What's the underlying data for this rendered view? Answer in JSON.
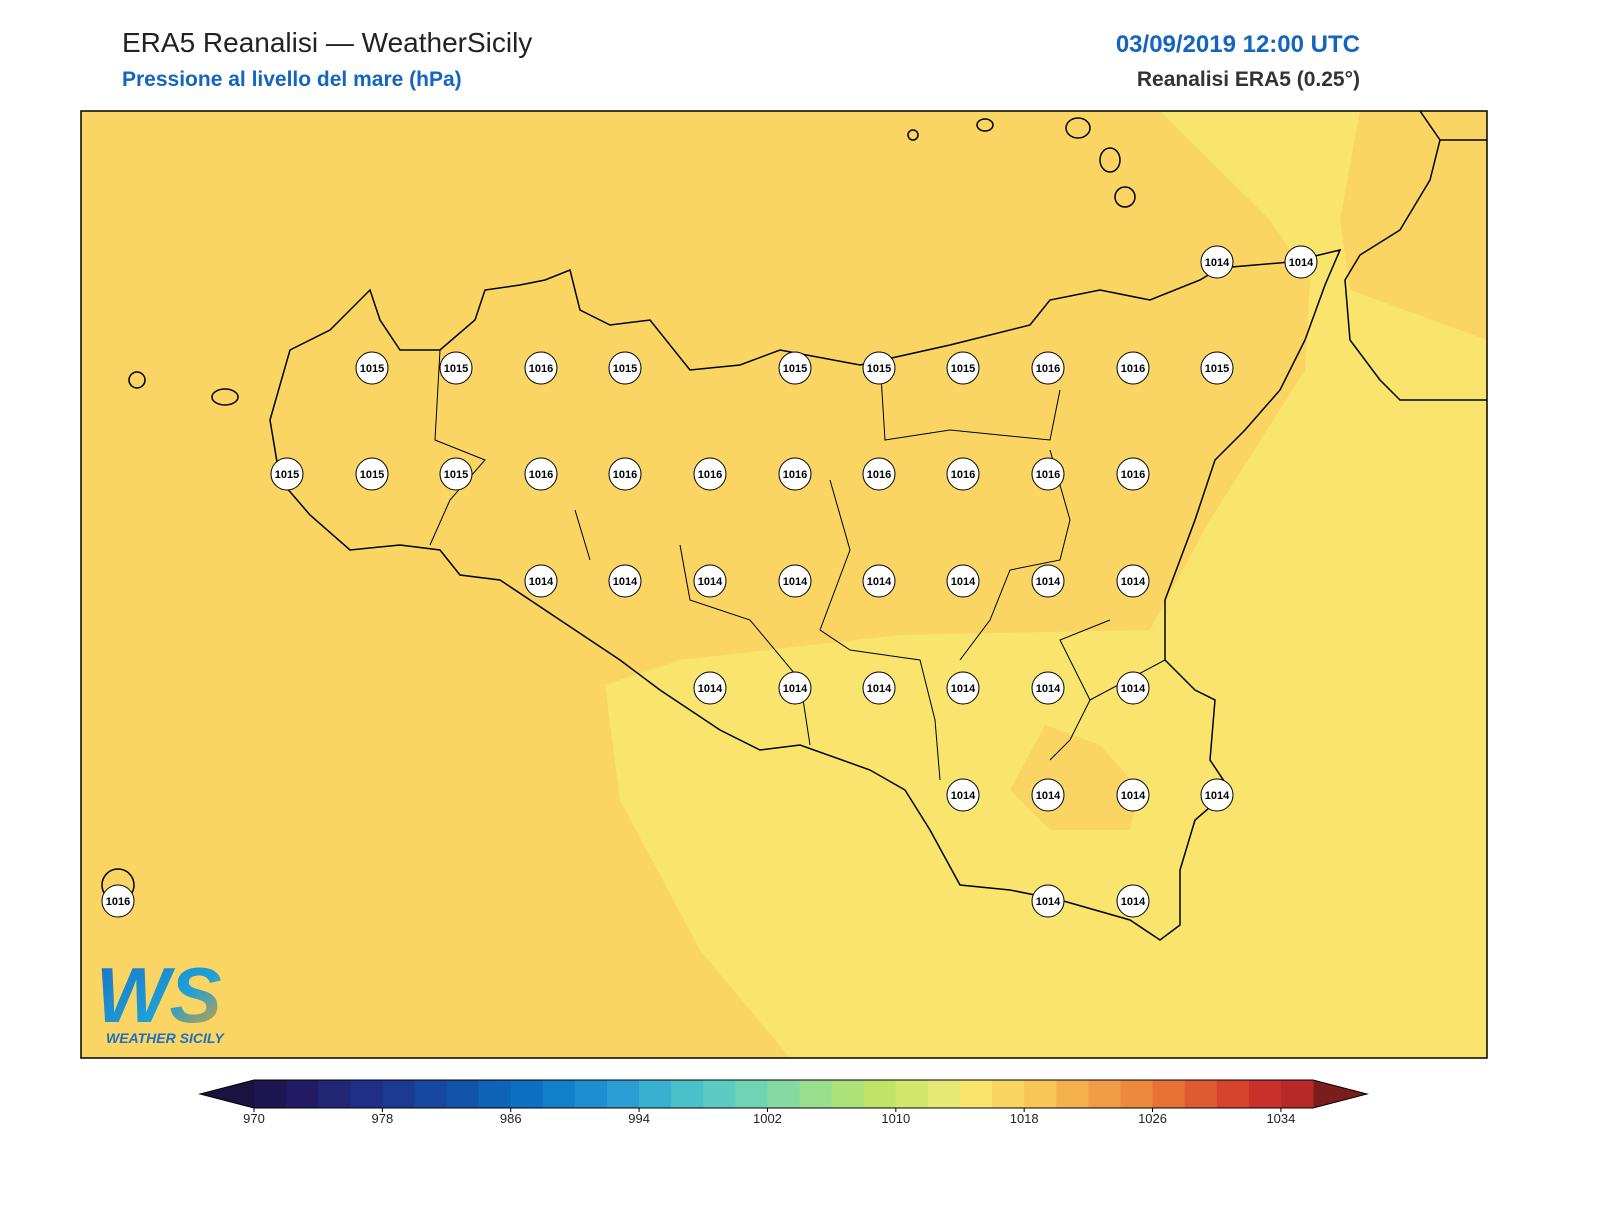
{
  "header": {
    "title": "ERA5 Reanalisi — WeatherSicily",
    "subtitle": "Pressione al livello del mare (hPa)",
    "datetime": "03/09/2019 12:00 UTC",
    "source": "Reanalisi ERA5 (0.25°)"
  },
  "stations": [
    1014,
    1014,
    1015,
    1015,
    1016,
    1015,
    1015,
    1015,
    1015,
    1016,
    1016,
    1015,
    1015,
    1015,
    1015,
    1016,
    1016,
    1016,
    1016,
    1016,
    1016,
    1016,
    1016,
    1014,
    1014,
    1014,
    1014,
    1014,
    1014,
    1014,
    1014,
    1014,
    1014,
    1014,
    1014,
    1014,
    1014,
    1014,
    1014,
    1014,
    1014,
    1016,
    1014,
    1014
  ],
  "colorbar": {
    "lim": [
      970,
      1036
    ],
    "ticks": [
      970,
      978,
      986,
      994,
      1002,
      1010,
      1018,
      1026,
      1034
    ],
    "colors": [
      "#1e1650",
      "#221a63",
      "#222775",
      "#1f2f85",
      "#1c3a92",
      "#17479f",
      "#1354ab",
      "#0e62b7",
      "#0b70c1",
      "#127fcb",
      "#1e8ed0",
      "#2c9dd2",
      "#3ab0d0",
      "#4ac0cb",
      "#5ccbc2",
      "#70d4b4",
      "#85daa3",
      "#98de8c",
      "#ace277",
      "#c0e566",
      "#d3e86b",
      "#e6ea75",
      "#f9e46d",
      "#fad563",
      "#f8c558",
      "#f4b04d",
      "#f19d45",
      "#ed883d",
      "#e87236",
      "#e05a31",
      "#d6442d",
      "#c8312b",
      "#b82829"
    ],
    "under": "#1a1240",
    "over": "#7c1d1d"
  },
  "logo": {
    "mark": "WS",
    "name": "WEATHER SICILY"
  }
}
